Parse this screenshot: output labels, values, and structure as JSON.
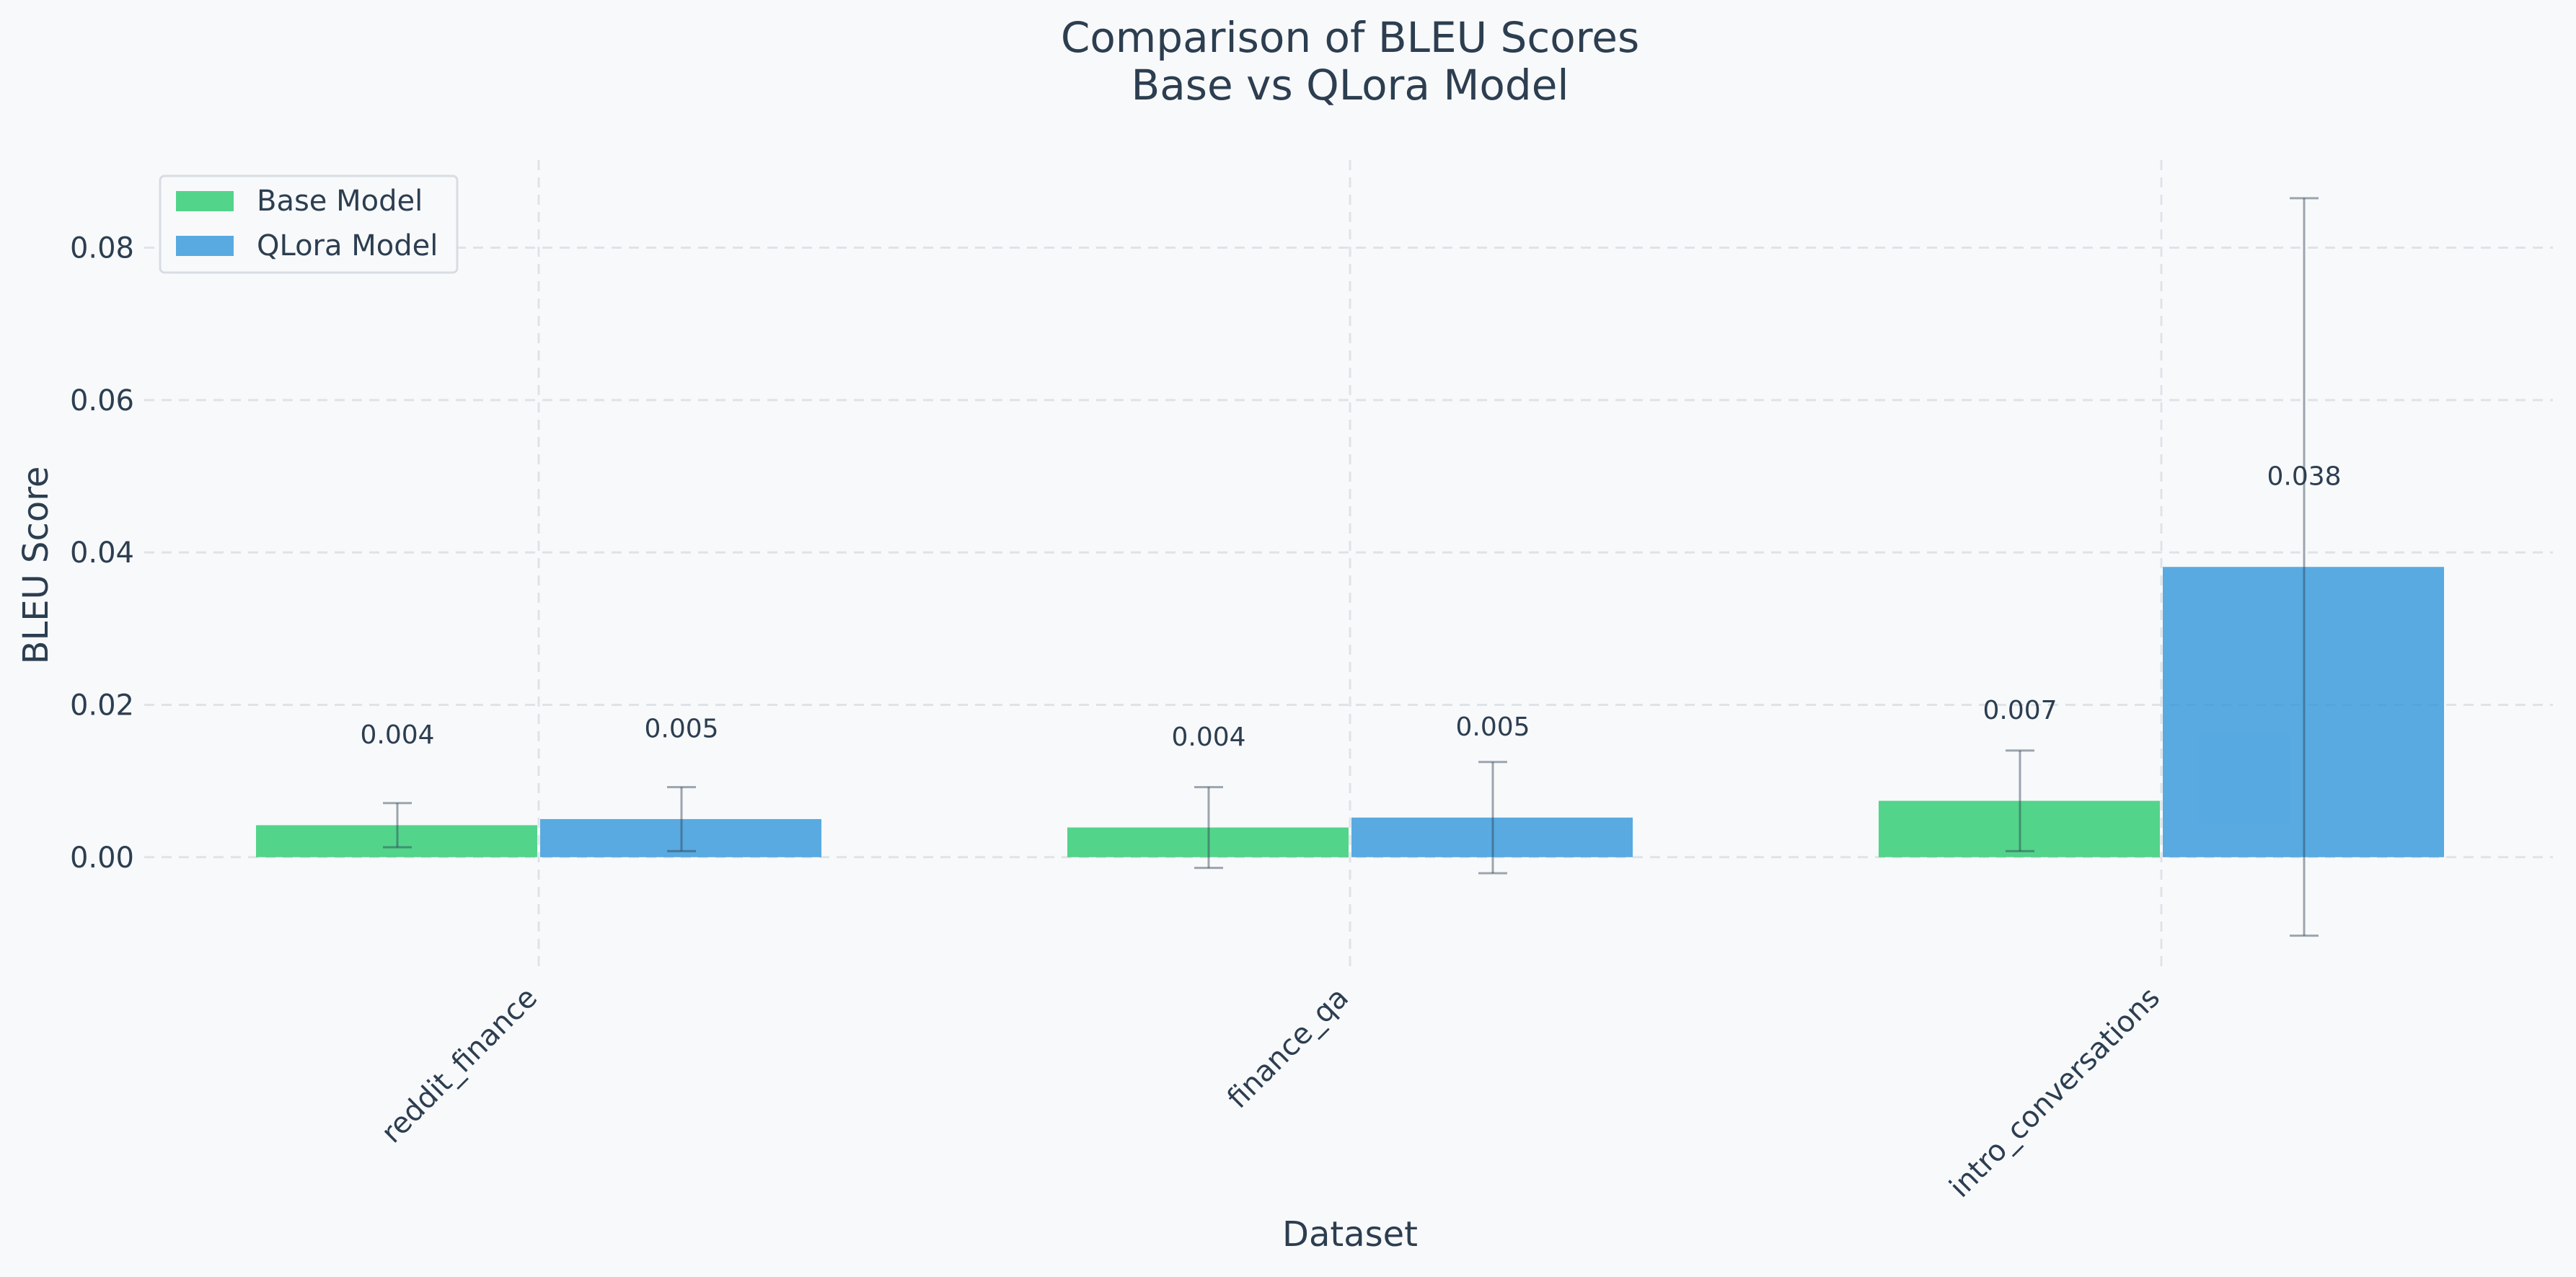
{
  "chart_data": {
    "type": "bar",
    "title": "Comparison of BLEU Scores",
    "subtitle": "Base vs QLora Model",
    "xlabel": "Dataset",
    "ylabel": "BLEU Score",
    "categories": [
      "reddit_finance",
      "finance_qa",
      "intro_conversations"
    ],
    "series": [
      {
        "name": "Base Model",
        "color": "#2ecc71",
        "values": [
          0.0042,
          0.0039,
          0.0074
        ],
        "error": [
          0.0029,
          0.0053,
          0.0066
        ],
        "labels": [
          "0.004",
          "0.004",
          "0.007"
        ]
      },
      {
        "name": "QLora Model",
        "color": "#3498db",
        "values": [
          0.005,
          0.0052,
          0.0381
        ],
        "error": [
          0.0042,
          0.0073,
          0.0484
        ],
        "labels": [
          "0.005",
          "0.005",
          "0.038"
        ]
      }
    ],
    "yticks": [
      "0.00",
      "0.02",
      "0.04",
      "0.06",
      "0.08"
    ],
    "ytick_values": [
      0,
      0.02,
      0.04,
      0.06,
      0.08
    ],
    "ylim": [
      -0.0145,
      0.0915
    ],
    "grid": true,
    "legend_position": "top-left"
  }
}
